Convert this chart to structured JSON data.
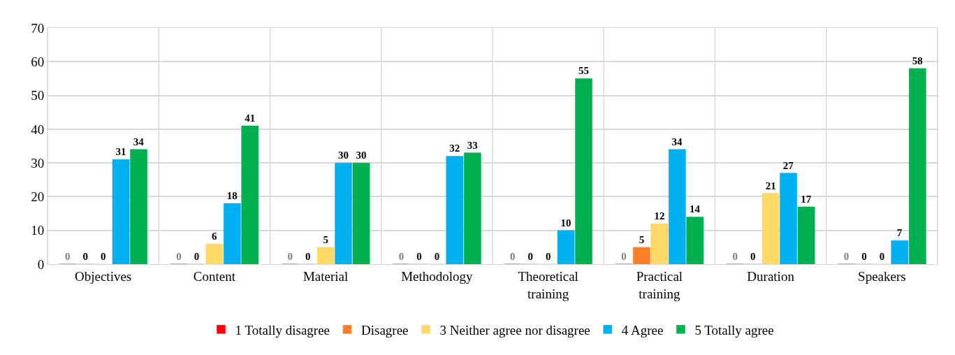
{
  "chart_data": {
    "type": "bar",
    "categories": [
      "Objectives",
      "Content",
      "Material",
      "Methodology",
      "Theoretical\ntraining",
      "Practical\ntraining",
      "Duration",
      "Speakers"
    ],
    "series": [
      {
        "name": "1 Totally disagree",
        "color": "#ff0000",
        "values": [
          0,
          0,
          0,
          0,
          0,
          0,
          0,
          0
        ]
      },
      {
        "name": "Disagree",
        "color": "#fe7f27",
        "values": [
          0,
          0,
          0,
          0,
          0,
          5,
          0,
          0
        ]
      },
      {
        "name": "3 Neither agree nor disagree",
        "color": "#ffd966",
        "values": [
          0,
          6,
          5,
          0,
          0,
          12,
          21,
          0
        ]
      },
      {
        "name": "4 Agree",
        "color": "#00b0f0",
        "values": [
          31,
          18,
          30,
          32,
          10,
          34,
          27,
          7
        ]
      },
      {
        "name": "5 Totally agree",
        "color": "#00b050",
        "values": [
          34,
          41,
          30,
          33,
          55,
          14,
          17,
          58
        ]
      }
    ],
    "ylim": [
      0,
      70
    ],
    "yticks": [
      0,
      10,
      20,
      30,
      40,
      50,
      60,
      70
    ],
    "grid": true,
    "legend": "bottom",
    "data_labels": true
  }
}
